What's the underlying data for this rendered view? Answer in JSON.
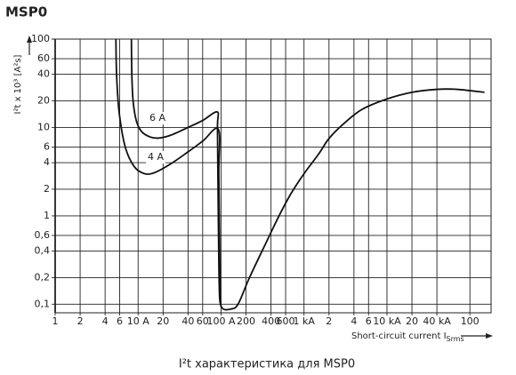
{
  "chart_data": {
    "type": "line",
    "title": "MSP0",
    "caption": "I²t характеристика для MSP0",
    "y_label": "I²t x 10³ [A²s]",
    "x_label": "Short-circuit current I",
    "x_label_sub": "Srms",
    "log_x": true,
    "log_y": true,
    "grid": true,
    "xlim": [
      1,
      180000
    ],
    "ylim": [
      0.08,
      100
    ],
    "xticks": [
      1,
      2,
      4,
      6,
      {
        "value": 10,
        "label": "10 A"
      },
      20,
      40,
      60,
      {
        "value": 100,
        "label": "100 A"
      },
      200,
      400,
      600,
      {
        "value": 1000,
        "label": "1 kA"
      },
      {
        "value": 2000,
        "label": "2"
      },
      {
        "value": 4000,
        "label": "4"
      },
      {
        "value": 6000,
        "label": "6"
      },
      {
        "value": 10000,
        "label": "10 kA"
      },
      {
        "value": 20000,
        "label": "20"
      },
      {
        "value": 40000,
        "label": "40 kA"
      },
      {
        "value": 100000,
        "label": "100"
      }
    ],
    "yticks": [
      100,
      60,
      40,
      20,
      10,
      6,
      4,
      2,
      1,
      {
        "value": 0.6,
        "label": "0,6"
      },
      {
        "value": 0.4,
        "label": "0,4"
      },
      {
        "value": 0.2,
        "label": "0,2"
      },
      {
        "value": 0.1,
        "label": "0,1"
      }
    ],
    "series": [
      {
        "name": "6 A",
        "color": "#111111",
        "x": [
          8.3,
          8.4,
          8.7,
          9.5,
          11,
          14,
          18,
          25,
          40,
          60,
          90,
          90.5,
          92,
          94,
          96,
          100
        ],
        "values": [
          100,
          40,
          20,
          12,
          9,
          7.8,
          7.6,
          8.2,
          10,
          12,
          15,
          10,
          2,
          0.3,
          0.12,
          0.095
        ]
      },
      {
        "name": "4 A",
        "color": "#111111",
        "x": [
          5.4,
          5.5,
          5.9,
          7,
          9,
          12,
          16,
          25,
          40,
          60,
          93,
          94,
          96,
          98,
          104,
          130,
          160,
          220,
          350,
          500,
          700,
          1000,
          1500,
          2000,
          3000,
          5000,
          10000,
          20000,
          40000,
          70000,
          150000
        ],
        "values": [
          100,
          40,
          15,
          6,
          3.6,
          3,
          3.1,
          3.9,
          5.3,
          7,
          9.5,
          3,
          0.5,
          0.12,
          0.09,
          0.088,
          0.1,
          0.2,
          0.5,
          1,
          1.8,
          3,
          5,
          7.5,
          11,
          16,
          21,
          25,
          27,
          27,
          25
        ]
      }
    ]
  }
}
